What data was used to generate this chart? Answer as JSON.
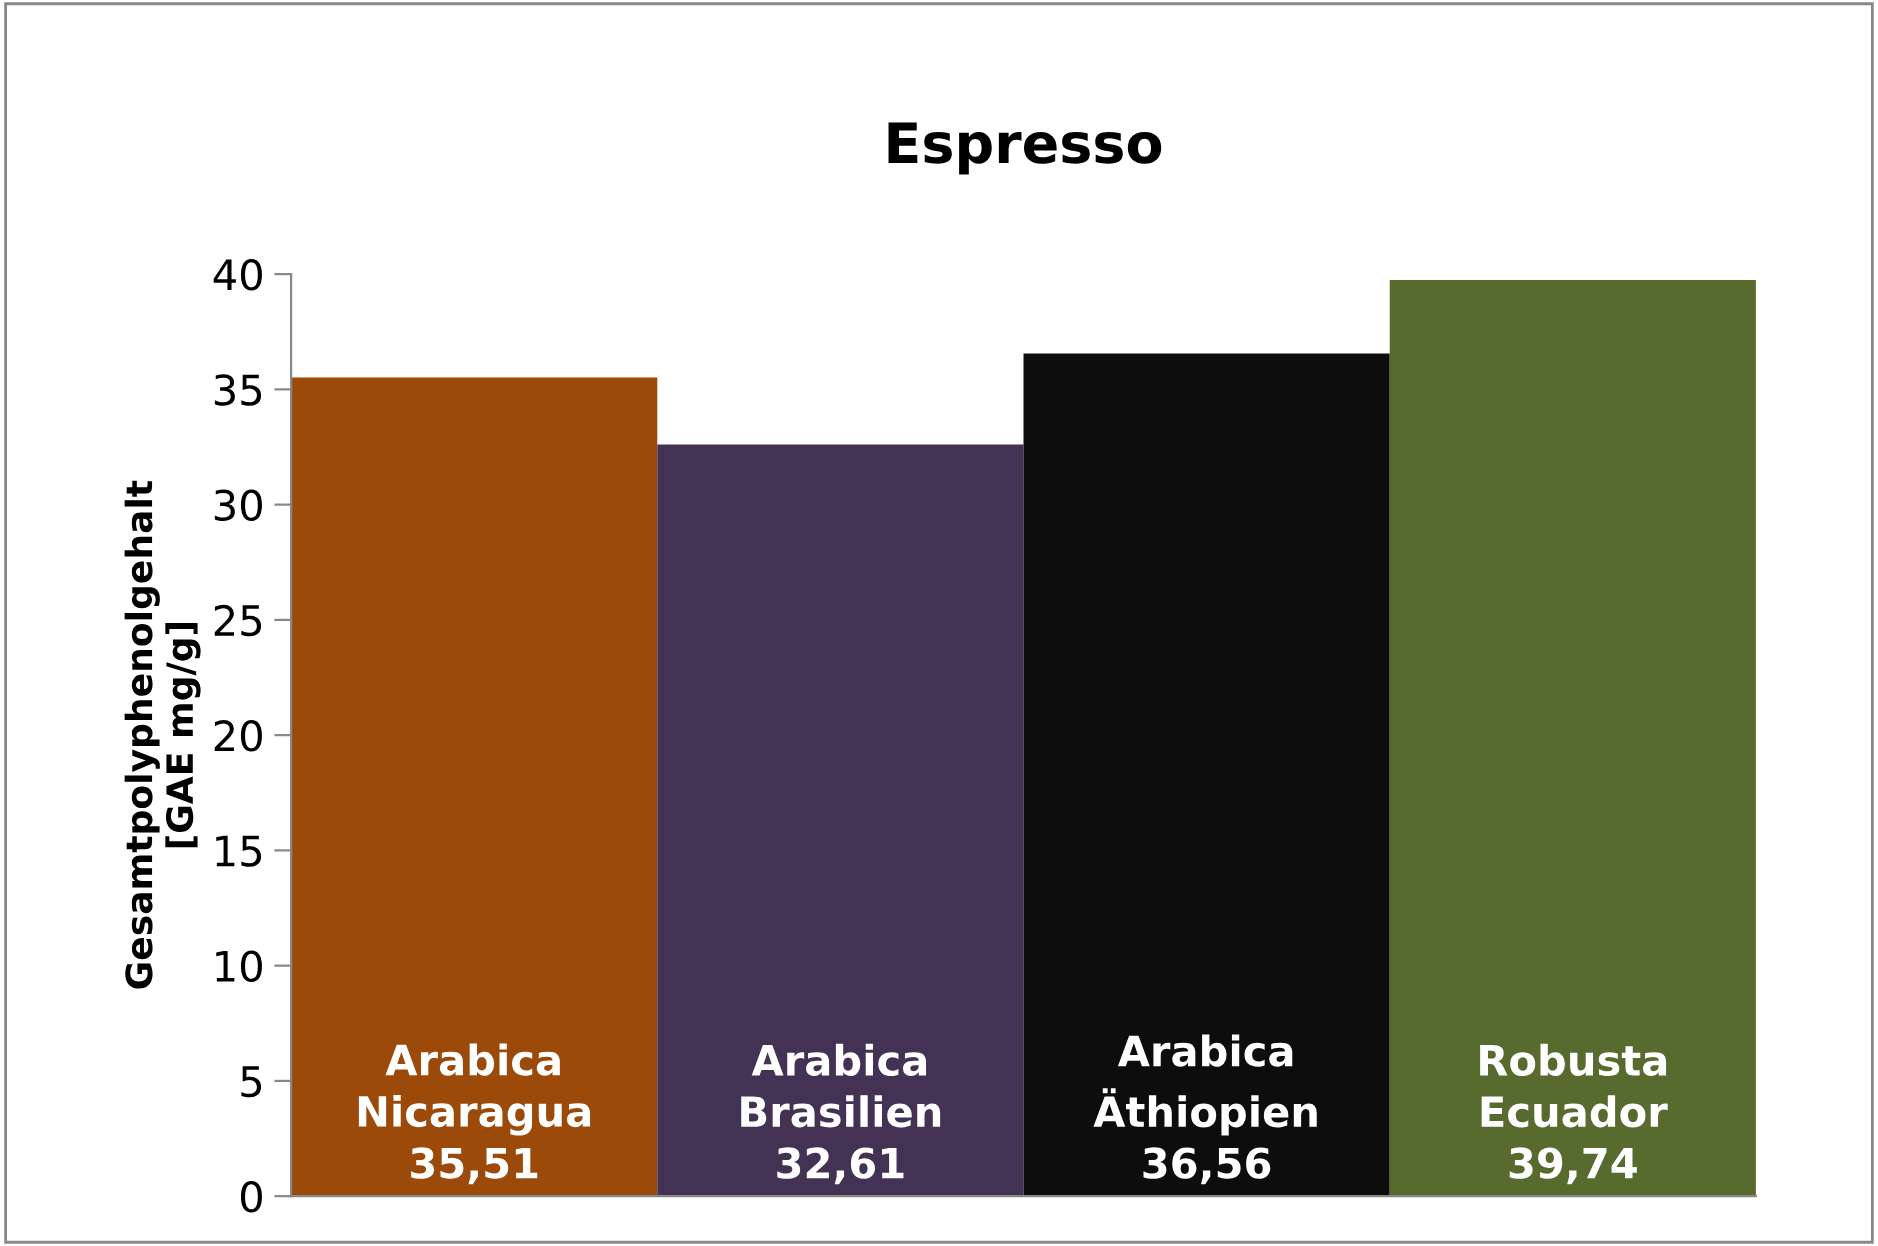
{
  "chart_data": {
    "type": "bar",
    "title": "Espresso",
    "ylabel": "Gesamtpolyphenolgehalt\n[GAE mg/g]",
    "categories": [
      "Arabica\nNicaragua",
      "Arabica\nBrasilien",
      "Arabica\nÄthiopien",
      "Robusta\nEcuador"
    ],
    "values": [
      35.51,
      32.61,
      36.56,
      39.74
    ],
    "value_labels": [
      "35,51",
      "32,61",
      "36,56",
      "39,74"
    ],
    "colors": [
      "#9c4a0a",
      "#433253",
      "#0d0d0d",
      "#566b2d"
    ],
    "ylim": [
      0,
      40
    ],
    "yticks": [
      0,
      5,
      10,
      15,
      20,
      25,
      30,
      35,
      40
    ],
    "grid": false,
    "legend": false
  }
}
